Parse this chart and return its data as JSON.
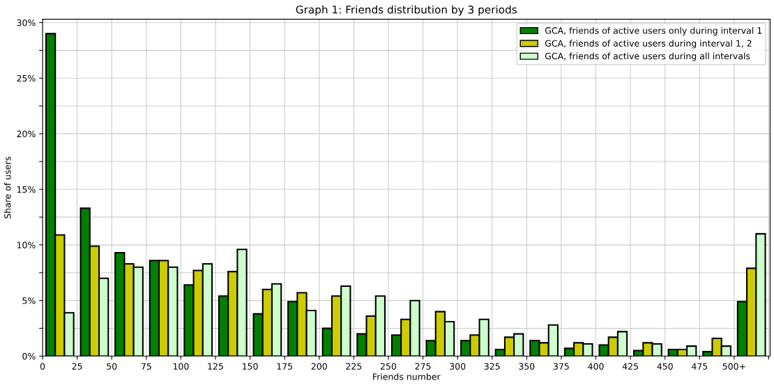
{
  "chart_data": {
    "type": "bar",
    "title": "Graph 1: Friends distribution by 3 periods",
    "xlabel": "Friends number",
    "ylabel": "Share of users",
    "series": [
      {
        "name": "GCA, friends of active users only during interval 1",
        "color": "#008000",
        "x": [
          5.83,
          30.83,
          55.83,
          80.83,
          105.83,
          130.83,
          155.83,
          180.83,
          205.83,
          230.83,
          255.83,
          280.83,
          305.83,
          330.83,
          355.83,
          380.83,
          405.83,
          430.83,
          455.83,
          480.83,
          505.83
        ],
        "values": [
          29.0,
          13.3,
          9.3,
          8.6,
          6.4,
          5.4,
          3.8,
          4.9,
          2.5,
          2.0,
          1.9,
          1.4,
          1.4,
          0.6,
          1.4,
          0.7,
          1.0,
          0.5,
          0.6,
          0.4,
          4.9
        ]
      },
      {
        "name": "GCA, friends of active users during interval 1, 2",
        "color": "#cccc00",
        "x": [
          12.5,
          37.5,
          62.5,
          87.5,
          112.5,
          137.5,
          162.5,
          187.5,
          212.5,
          237.5,
          262.5,
          287.5,
          312.5,
          337.5,
          362.5,
          387.5,
          412.5,
          437.5,
          462.5,
          487.5,
          512.5
        ],
        "values": [
          10.9,
          9.9,
          8.3,
          8.6,
          7.7,
          7.6,
          6.0,
          5.7,
          5.4,
          3.6,
          3.3,
          4.0,
          1.9,
          1.7,
          1.2,
          1.2,
          1.7,
          1.2,
          0.6,
          1.6,
          7.9
        ]
      },
      {
        "name": "GCA, friends of active users during all intervals",
        "color": "#ccffcc",
        "x": [
          19.17,
          44.17,
          69.17,
          94.17,
          119.17,
          144.17,
          169.17,
          194.17,
          219.17,
          244.17,
          269.17,
          294.17,
          319.17,
          344.17,
          369.17,
          394.17,
          419.17,
          444.17,
          469.17,
          494.17,
          519.17
        ],
        "values": [
          3.9,
          7.0,
          8.0,
          8.0,
          8.3,
          9.6,
          6.5,
          4.1,
          6.3,
          5.4,
          5.0,
          3.1,
          3.3,
          2.0,
          2.8,
          1.1,
          2.2,
          1.1,
          0.9,
          0.9,
          11.0
        ]
      }
    ],
    "xlim": [
      0,
      526
    ],
    "xticks": [
      0,
      25,
      50,
      75,
      100,
      125,
      150,
      175,
      200,
      225,
      250,
      275,
      300,
      325,
      350,
      375,
      400,
      425,
      450,
      475,
      {
        "value": 500,
        "label": "500+"
      },
      {
        "value": 525,
        "label": null
      }
    ],
    "ylim": [
      0,
      30.3
    ],
    "yticks": [
      {
        "value": 0,
        "label": "0%"
      },
      {
        "value": 2.5,
        "label": null
      },
      {
        "value": 5,
        "label": "5%"
      },
      {
        "value": 7.5,
        "label": null
      },
      {
        "value": 10,
        "label": "10%"
      },
      {
        "value": 12.5,
        "label": null
      },
      {
        "value": 15,
        "label": "15%"
      },
      {
        "value": 17.5,
        "label": null
      },
      {
        "value": 20,
        "label": "20%"
      },
      {
        "value": 22.5,
        "label": null
      },
      {
        "value": 25,
        "label": "25%"
      },
      {
        "value": 27.5,
        "label": null
      },
      {
        "value": 30,
        "label": "30%"
      }
    ],
    "grid": true,
    "legend": "top right"
  }
}
